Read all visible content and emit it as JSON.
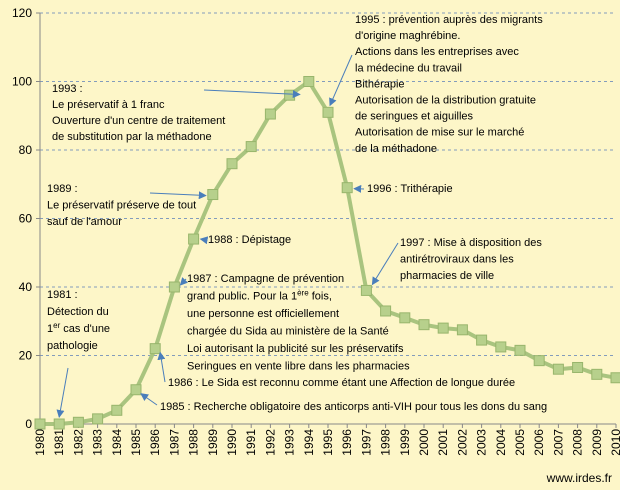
{
  "chart_data": {
    "type": "line",
    "x": [
      1980,
      1981,
      1982,
      1983,
      1984,
      1985,
      1986,
      1987,
      1988,
      1989,
      1990,
      1991,
      1992,
      1993,
      1994,
      1995,
      1996,
      1997,
      1998,
      1999,
      2000,
      2001,
      2002,
      2003,
      2004,
      2005,
      2006,
      2007,
      2008,
      2009,
      2010
    ],
    "series": [
      {
        "values": [
          0,
          0,
          0.5,
          1.5,
          4,
          10,
          22,
          40,
          54,
          67,
          76,
          81,
          90.5,
          96,
          100,
          91,
          69,
          39,
          33,
          31,
          29,
          28,
          27.5,
          24.5,
          22.5,
          21.5,
          18.5,
          16,
          16.5,
          14.5,
          13.5
        ]
      }
    ],
    "ylim": [
      0,
      120
    ],
    "yticks": [
      0,
      20,
      40,
      60,
      80,
      100,
      120
    ],
    "grid": "horizontal dashed",
    "line_color": "#a9c47f",
    "marker_color": "#b7d08c",
    "annotations": [
      {
        "year": 1981,
        "lines": [
          "1981 :",
          "Détection du",
          "1er cas d'une",
          "pathologie"
        ]
      },
      {
        "year": 1985,
        "lines": [
          "1985 : Recherche obligatoire des anticorps anti-VIH  pour tous les dons du sang"
        ]
      },
      {
        "year": 1986,
        "lines": [
          "1986 : Le Sida est reconnu comme étant une Affection de longue durée"
        ]
      },
      {
        "year": 1987,
        "lines": [
          "1987 : Campagne de prévention",
          "grand public. Pour la 1ère fois,",
          "une personne est officiellement",
          "chargée du Sida au ministère de la Santé",
          "Loi autorisant la publicité sur les préservatifs",
          "Seringues en vente libre dans les pharmacies"
        ]
      },
      {
        "year": 1988,
        "lines": [
          "1988 : Dépistage"
        ]
      },
      {
        "year": 1989,
        "lines": [
          "1989 :",
          "Le préservatif préserve de tout",
          "sauf de l'amour"
        ]
      },
      {
        "year": 1993,
        "lines": [
          "1993 :",
          "Le préservatif à 1 franc",
          "Ouverture d'un centre de traitement",
          "de substitution  par la méthadone"
        ]
      },
      {
        "year": 1995,
        "lines": [
          "1995 : prévention auprès des migrants",
          " d'origine maghrébine.",
          "Actions dans les entreprises avec",
          "la médecine du  travail",
          "Bithérapie",
          "Autorisation de la distribution gratuite",
          "de seringues et aiguilles",
          "Autorisation de mise sur le marché",
          "de la méthadone"
        ]
      },
      {
        "year": 1996,
        "lines": [
          "1996 : Trithérapie"
        ]
      },
      {
        "year": 1997,
        "lines": [
          "1997 : Mise à disposition  des",
          "antirétroviraux dans les",
          "pharmacies de ville"
        ]
      }
    ]
  },
  "source": "www.irdes.fr"
}
